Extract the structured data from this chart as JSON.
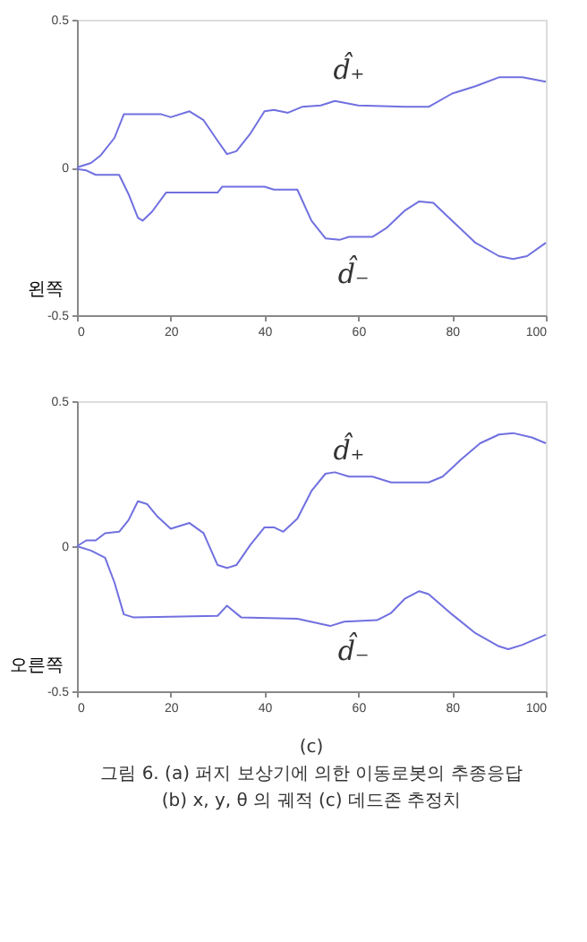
{
  "chart_data": [
    {
      "type": "line",
      "ylabel": "왼쪽",
      "xlim": [
        0,
        100
      ],
      "xticks": [
        0,
        20,
        40,
        60,
        80,
        100
      ],
      "ylim": [
        -0.5,
        0.5
      ],
      "yticks": [
        -0.5,
        0,
        0.5
      ],
      "grid": false,
      "series": [
        {
          "color": "#7070e0",
          "x": [
            0,
            3,
            5,
            8,
            10,
            18,
            20,
            24,
            27,
            30,
            32,
            34,
            37,
            40,
            42,
            45,
            48,
            52,
            55,
            60,
            70,
            75,
            80,
            85,
            90,
            95,
            100
          ],
          "values": [
            0,
            0.015,
            0.04,
            0.1,
            0.18,
            0.18,
            0.17,
            0.19,
            0.16,
            0.09,
            0.045,
            0.055,
            0.115,
            0.19,
            0.195,
            0.185,
            0.205,
            0.21,
            0.225,
            0.21,
            0.205,
            0.205,
            0.25,
            0.275,
            0.305,
            0.305,
            0.29
          ]
        },
        {
          "color": "#7070e0",
          "x": [
            0,
            2,
            4,
            9,
            11,
            13,
            14,
            16,
            19,
            30,
            31,
            40,
            42,
            47,
            50,
            53,
            56,
            58,
            63,
            66,
            70,
            73,
            76,
            80,
            85,
            90,
            93,
            96,
            100
          ],
          "values": [
            -0.005,
            -0.01,
            -0.025,
            -0.025,
            -0.09,
            -0.17,
            -0.18,
            -0.15,
            -0.085,
            -0.085,
            -0.065,
            -0.065,
            -0.075,
            -0.075,
            -0.18,
            -0.24,
            -0.245,
            -0.235,
            -0.235,
            -0.205,
            -0.145,
            -0.115,
            -0.12,
            -0.18,
            -0.255,
            -0.3,
            -0.31,
            -0.3,
            -0.255
          ]
        }
      ],
      "annotations": [
        "d̂₊",
        "d̂₋"
      ]
    },
    {
      "type": "line",
      "ylabel": "오른쪽",
      "xlim": [
        0,
        100
      ],
      "xticks": [
        0,
        20,
        40,
        60,
        80,
        100
      ],
      "ylim": [
        -0.5,
        0.5
      ],
      "yticks": [
        -0.5,
        0,
        0.5
      ],
      "grid": false,
      "series": [
        {
          "color": "#7070e0",
          "x": [
            0,
            2,
            4,
            6,
            9,
            11,
            13,
            15,
            17,
            20,
            24,
            27,
            30,
            32,
            34,
            37,
            40,
            42,
            44,
            47,
            50,
            53,
            55,
            58,
            63,
            67,
            75,
            78,
            82,
            86,
            90,
            93,
            97,
            100
          ],
          "values": [
            0,
            0.02,
            0.02,
            0.045,
            0.05,
            0.09,
            0.155,
            0.145,
            0.105,
            0.06,
            0.08,
            0.045,
            -0.065,
            -0.075,
            -0.065,
            0.005,
            0.065,
            0.065,
            0.05,
            0.095,
            0.19,
            0.25,
            0.255,
            0.24,
            0.24,
            0.22,
            0.22,
            0.24,
            0.3,
            0.355,
            0.385,
            0.39,
            0.375,
            0.355
          ]
        },
        {
          "color": "#7070e0",
          "x": [
            0,
            3,
            6,
            8,
            10,
            12,
            30,
            32,
            35,
            47,
            54,
            57,
            64,
            67,
            70,
            73,
            75,
            80,
            85,
            90,
            92,
            95,
            100
          ],
          "values": [
            0,
            -0.015,
            -0.04,
            -0.125,
            -0.235,
            -0.245,
            -0.24,
            -0.205,
            -0.245,
            -0.25,
            -0.275,
            -0.26,
            -0.255,
            -0.23,
            -0.18,
            -0.155,
            -0.165,
            -0.235,
            -0.3,
            -0.345,
            -0.355,
            -0.34,
            -0.305
          ]
        }
      ],
      "annotations": [
        "d̂₊",
        "d̂₋",
        "(c)",
        "그림 6. (a) 퍼지 보상기에 의한 이동로봇의 추종응답",
        "(b) x, y, θ 의 궤적 (c) 데드존 추정치"
      ]
    }
  ]
}
